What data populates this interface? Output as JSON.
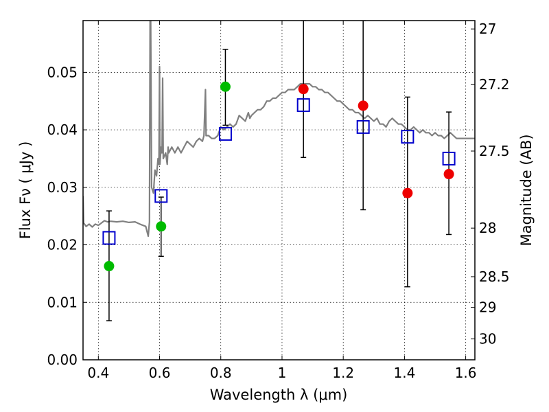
{
  "chart_data": {
    "type": "scatter",
    "xlabel": "Wavelength  λ (μm)",
    "ylabel": "Flux  Fν ( μJy )",
    "ylabel_right": "Magnitude (AB)",
    "xlim": [
      0.35,
      1.63
    ],
    "ylim": [
      0.0,
      0.059
    ],
    "grid": true,
    "x_ticks": [
      {
        "value": 0.4,
        "label": "0.4"
      },
      {
        "value": 0.6,
        "label": "0.6"
      },
      {
        "value": 0.8,
        "label": "0.8"
      },
      {
        "value": 1.0,
        "label": "1"
      },
      {
        "value": 1.2,
        "label": "1.2"
      },
      {
        "value": 1.4,
        "label": "1.4"
      },
      {
        "value": 1.6,
        "label": "1.6"
      }
    ],
    "y_ticks": [
      {
        "value": 0.0,
        "label": "0.00"
      },
      {
        "value": 0.01,
        "label": "0.01"
      },
      {
        "value": 0.02,
        "label": "0.02"
      },
      {
        "value": 0.03,
        "label": "0.03"
      },
      {
        "value": 0.04,
        "label": "0.04"
      },
      {
        "value": 0.05,
        "label": "0.05"
      }
    ],
    "mag_ticks": [
      {
        "value": 27,
        "label": "27"
      },
      {
        "value": 27.2,
        "label": "27.2"
      },
      {
        "value": 27.5,
        "label": "27.5"
      },
      {
        "value": 28,
        "label": "28"
      },
      {
        "value": 28.5,
        "label": "28.5"
      },
      {
        "value": 29,
        "label": "29"
      },
      {
        "value": 30,
        "label": "30"
      }
    ],
    "colors": {
      "spectrum": "#808080",
      "green": "#00bb00",
      "red": "#ee0000",
      "model_box": "#0000cc",
      "errorbar": "#000000",
      "grid": "#000000"
    },
    "spectrum": [
      [
        0.35,
        0.0285
      ],
      [
        0.352,
        0.0238
      ],
      [
        0.36,
        0.0232
      ],
      [
        0.37,
        0.0236
      ],
      [
        0.38,
        0.0231
      ],
      [
        0.39,
        0.0236
      ],
      [
        0.4,
        0.0234
      ],
      [
        0.41,
        0.0238
      ],
      [
        0.42,
        0.0242
      ],
      [
        0.43,
        0.024
      ],
      [
        0.44,
        0.0241
      ],
      [
        0.46,
        0.024
      ],
      [
        0.48,
        0.0241
      ],
      [
        0.5,
        0.0239
      ],
      [
        0.52,
        0.024
      ],
      [
        0.54,
        0.0235
      ],
      [
        0.555,
        0.0232
      ],
      [
        0.563,
        0.0215
      ],
      [
        0.567,
        0.024
      ],
      [
        0.569,
        0.059
      ],
      [
        0.571,
        0.059
      ],
      [
        0.574,
        0.03
      ],
      [
        0.58,
        0.029
      ],
      [
        0.585,
        0.033
      ],
      [
        0.59,
        0.032
      ],
      [
        0.595,
        0.035
      ],
      [
        0.598,
        0.034
      ],
      [
        0.6,
        0.051
      ],
      [
        0.601,
        0.034
      ],
      [
        0.605,
        0.037
      ],
      [
        0.608,
        0.036
      ],
      [
        0.61,
        0.049
      ],
      [
        0.612,
        0.035
      ],
      [
        0.62,
        0.036
      ],
      [
        0.625,
        0.034
      ],
      [
        0.628,
        0.037
      ],
      [
        0.63,
        0.036
      ],
      [
        0.64,
        0.037
      ],
      [
        0.65,
        0.036
      ],
      [
        0.66,
        0.037
      ],
      [
        0.67,
        0.036
      ],
      [
        0.68,
        0.037
      ],
      [
        0.69,
        0.038
      ],
      [
        0.7,
        0.0375
      ],
      [
        0.71,
        0.037
      ],
      [
        0.72,
        0.038
      ],
      [
        0.73,
        0.0385
      ],
      [
        0.74,
        0.038
      ],
      [
        0.745,
        0.039
      ],
      [
        0.75,
        0.047
      ],
      [
        0.752,
        0.039
      ],
      [
        0.76,
        0.039
      ],
      [
        0.77,
        0.0385
      ],
      [
        0.78,
        0.0385
      ],
      [
        0.79,
        0.039
      ],
      [
        0.8,
        0.0405
      ],
      [
        0.81,
        0.04
      ],
      [
        0.82,
        0.0405
      ],
      [
        0.83,
        0.041
      ],
      [
        0.84,
        0.0405
      ],
      [
        0.85,
        0.041
      ],
      [
        0.86,
        0.0425
      ],
      [
        0.87,
        0.042
      ],
      [
        0.88,
        0.0415
      ],
      [
        0.89,
        0.043
      ],
      [
        0.895,
        0.042
      ],
      [
        0.9,
        0.0425
      ],
      [
        0.91,
        0.043
      ],
      [
        0.92,
        0.0435
      ],
      [
        0.93,
        0.0435
      ],
      [
        0.94,
        0.044
      ],
      [
        0.95,
        0.045
      ],
      [
        0.96,
        0.045
      ],
      [
        0.97,
        0.0455
      ],
      [
        0.98,
        0.0455
      ],
      [
        0.99,
        0.046
      ],
      [
        1.0,
        0.0465
      ],
      [
        1.01,
        0.0465
      ],
      [
        1.02,
        0.047
      ],
      [
        1.03,
        0.047
      ],
      [
        1.04,
        0.047
      ],
      [
        1.05,
        0.0475
      ],
      [
        1.06,
        0.048
      ],
      [
        1.07,
        0.048
      ],
      [
        1.08,
        0.048
      ],
      [
        1.09,
        0.048
      ],
      [
        1.1,
        0.0475
      ],
      [
        1.11,
        0.0475
      ],
      [
        1.12,
        0.047
      ],
      [
        1.13,
        0.047
      ],
      [
        1.14,
        0.0465
      ],
      [
        1.15,
        0.0465
      ],
      [
        1.16,
        0.046
      ],
      [
        1.17,
        0.0455
      ],
      [
        1.18,
        0.045
      ],
      [
        1.19,
        0.045
      ],
      [
        1.2,
        0.0445
      ],
      [
        1.21,
        0.044
      ],
      [
        1.22,
        0.0435
      ],
      [
        1.23,
        0.0435
      ],
      [
        1.24,
        0.043
      ],
      [
        1.25,
        0.043
      ],
      [
        1.26,
        0.0425
      ],
      [
        1.27,
        0.042
      ],
      [
        1.28,
        0.0425
      ],
      [
        1.29,
        0.042
      ],
      [
        1.3,
        0.0415
      ],
      [
        1.31,
        0.042
      ],
      [
        1.32,
        0.041
      ],
      [
        1.33,
        0.041
      ],
      [
        1.34,
        0.0405
      ],
      [
        1.35,
        0.0415
      ],
      [
        1.36,
        0.042
      ],
      [
        1.37,
        0.0415
      ],
      [
        1.38,
        0.041
      ],
      [
        1.39,
        0.041
      ],
      [
        1.4,
        0.0405
      ],
      [
        1.41,
        0.04
      ],
      [
        1.42,
        0.04
      ],
      [
        1.43,
        0.0405
      ],
      [
        1.44,
        0.04
      ],
      [
        1.45,
        0.0395
      ],
      [
        1.46,
        0.04
      ],
      [
        1.47,
        0.0395
      ],
      [
        1.48,
        0.0395
      ],
      [
        1.49,
        0.039
      ],
      [
        1.5,
        0.0395
      ],
      [
        1.51,
        0.039
      ],
      [
        1.52,
        0.039
      ],
      [
        1.53,
        0.0385
      ],
      [
        1.54,
        0.039
      ],
      [
        1.55,
        0.0395
      ],
      [
        1.56,
        0.039
      ],
      [
        1.57,
        0.0385
      ],
      [
        1.58,
        0.0385
      ],
      [
        1.59,
        0.0385
      ],
      [
        1.6,
        0.0385
      ],
      [
        1.61,
        0.0385
      ],
      [
        1.62,
        0.0385
      ],
      [
        1.63,
        0.0385
      ]
    ],
    "observed_green": [
      {
        "x": 0.435,
        "y": 0.0163
      },
      {
        "x": 0.605,
        "y": 0.0232
      },
      {
        "x": 0.815,
        "y": 0.0475
      }
    ],
    "observed_red": [
      {
        "x": 1.07,
        "y": 0.0471
      },
      {
        "x": 1.265,
        "y": 0.0442
      },
      {
        "x": 1.41,
        "y": 0.029
      },
      {
        "x": 1.545,
        "y": 0.0323
      }
    ],
    "model_points": [
      {
        "x": 0.435,
        "y": 0.0212
      },
      {
        "x": 0.605,
        "y": 0.0285
      },
      {
        "x": 0.815,
        "y": 0.0393
      },
      {
        "x": 1.07,
        "y": 0.0443
      },
      {
        "x": 1.265,
        "y": 0.0405
      },
      {
        "x": 1.41,
        "y": 0.0388
      },
      {
        "x": 1.545,
        "y": 0.035
      }
    ],
    "error_bars": [
      {
        "x": 0.435,
        "low": 0.0068,
        "high": 0.0259
      },
      {
        "x": 0.605,
        "low": 0.018,
        "high": 0.0283
      },
      {
        "x": 0.815,
        "low": 0.0408,
        "high": 0.054
      },
      {
        "x": 1.07,
        "low": 0.0352,
        "high": 0.059
      },
      {
        "x": 1.265,
        "low": 0.0261,
        "high": 0.059
      },
      {
        "x": 1.41,
        "low": 0.0127,
        "high": 0.0457
      },
      {
        "x": 1.545,
        "low": 0.0218,
        "high": 0.0431
      }
    ]
  }
}
